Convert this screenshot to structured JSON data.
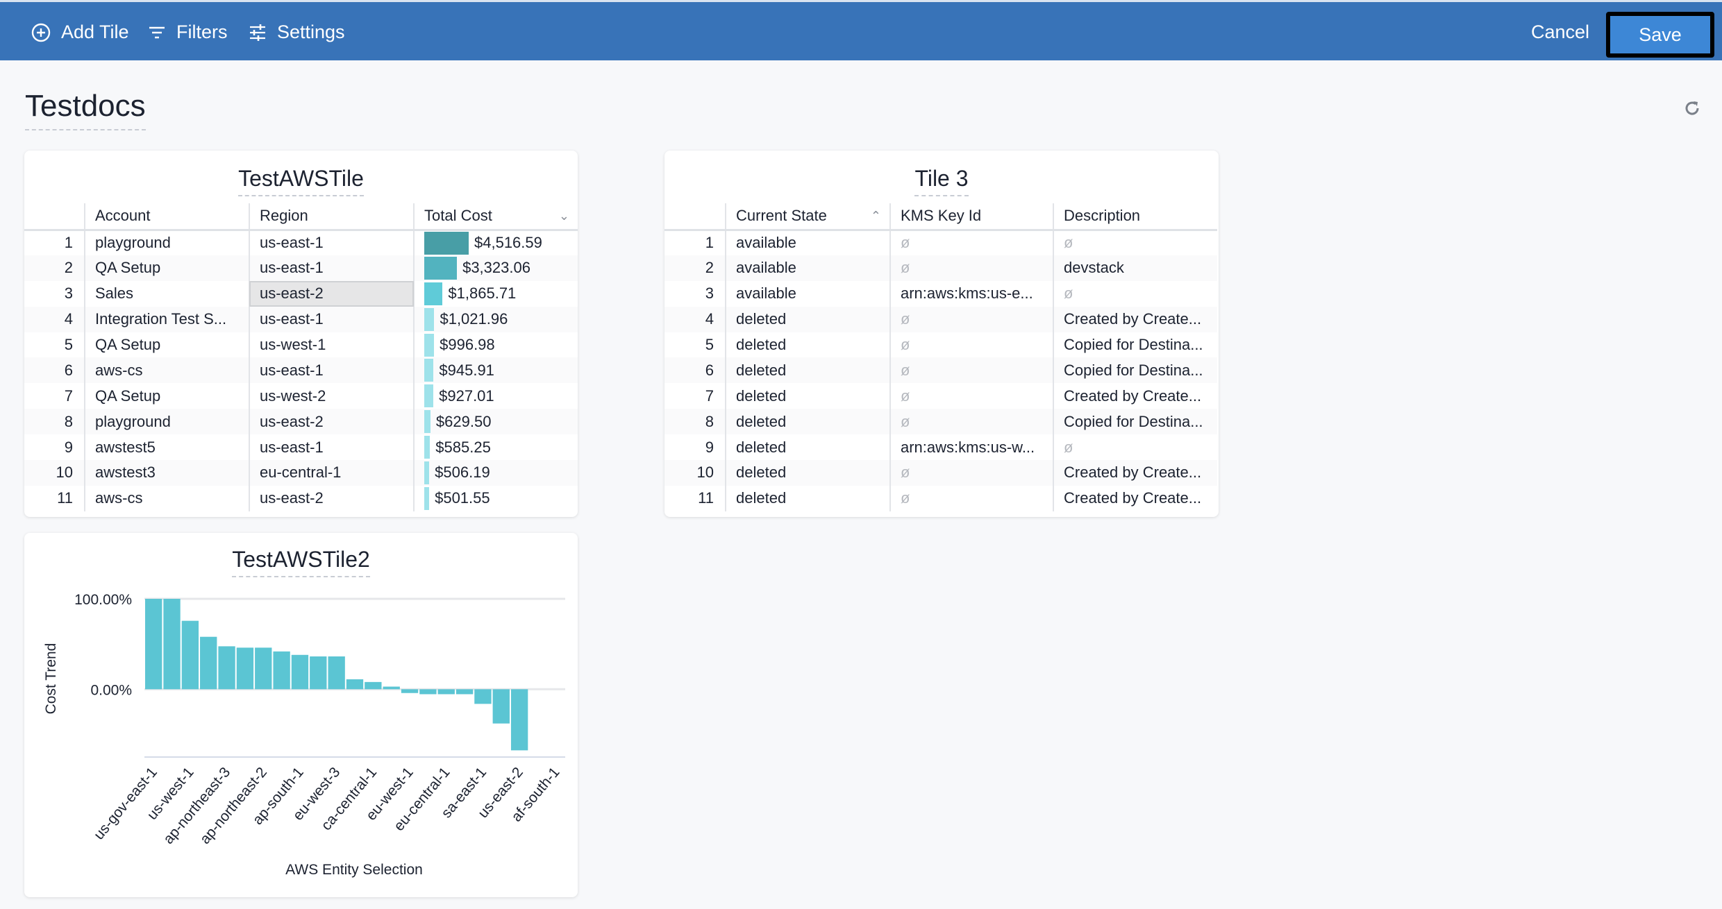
{
  "toolbar": {
    "add_tile": "Add Tile",
    "filters": "Filters",
    "settings": "Settings",
    "cancel": "Cancel",
    "save": "Save"
  },
  "page": {
    "title": "Testdocs"
  },
  "tile1": {
    "title": "TestAWSTile",
    "columns": [
      "",
      "Account",
      "Region",
      "Total Cost"
    ],
    "sort_column": "Total Cost",
    "sort_dir": "desc",
    "rows": [
      [
        "1",
        "playground",
        "us-east-1",
        "$4,516.59",
        4516.59
      ],
      [
        "2",
        "QA Setup",
        "us-east-1",
        "$3,323.06",
        3323.06
      ],
      [
        "3",
        "Sales",
        "us-east-2",
        "$1,865.71",
        1865.71
      ],
      [
        "4",
        "Integration Test S...",
        "us-east-1",
        "$1,021.96",
        1021.96
      ],
      [
        "5",
        "QA Setup",
        "us-west-1",
        "$996.98",
        996.98
      ],
      [
        "6",
        "aws-cs",
        "us-east-1",
        "$945.91",
        945.91
      ],
      [
        "7",
        "QA Setup",
        "us-west-2",
        "$927.01",
        927.01
      ],
      [
        "8",
        "playground",
        "us-east-2",
        "$629.50",
        629.5
      ],
      [
        "9",
        "awstest5",
        "us-east-1",
        "$585.25",
        585.25
      ],
      [
        "10",
        "awstest3",
        "eu-central-1",
        "$506.19",
        506.19
      ],
      [
        "11",
        "aws-cs",
        "us-east-2",
        "$501.55",
        501.55
      ]
    ]
  },
  "tile3": {
    "title": "Tile 3",
    "columns": [
      "",
      "Current State",
      "KMS Key Id",
      "Description"
    ],
    "sort_column": "Current State",
    "sort_dir": "asc",
    "null_symbol": "ø",
    "rows": [
      [
        "1",
        "available",
        "ø",
        "ø"
      ],
      [
        "2",
        "available",
        "ø",
        "devstack"
      ],
      [
        "3",
        "available",
        "arn:aws:kms:us-e...",
        "ø"
      ],
      [
        "4",
        "deleted",
        "ø",
        "Created by Create..."
      ],
      [
        "5",
        "deleted",
        "ø",
        "Copied for Destina..."
      ],
      [
        "6",
        "deleted",
        "ø",
        "Copied for Destina..."
      ],
      [
        "7",
        "deleted",
        "ø",
        "Created by Create..."
      ],
      [
        "8",
        "deleted",
        "ø",
        "Copied for Destina..."
      ],
      [
        "9",
        "deleted",
        "arn:aws:kms:us-w...",
        "ø"
      ],
      [
        "10",
        "deleted",
        "ø",
        "Created by Create..."
      ],
      [
        "11",
        "deleted",
        "ø",
        "Created by Create..."
      ]
    ]
  },
  "colors": {
    "header": "#3873b8",
    "save": "#3d87d6",
    "bar": "#5bc5d3"
  },
  "chart_data": {
    "type": "bar",
    "title": "TestAWSTile2",
    "xlabel": "AWS Entity Selection",
    "ylabel": "Cost Trend",
    "categories": [
      "us-gov-east-1",
      "",
      "us-west-1",
      "",
      "ap-northeast-3",
      "",
      "ap-northeast-2",
      "",
      "ap-south-1",
      "",
      "eu-west-3",
      "",
      "ca-central-1",
      "",
      "eu-west-1",
      "",
      "eu-central-1",
      "",
      "sa-east-1",
      "",
      "us-east-2",
      "",
      "af-south-1"
    ],
    "values": [
      100,
      100,
      75.7,
      58,
      47.5,
      46,
      46,
      41.8,
      38,
      36.3,
      36.3,
      11,
      8,
      2.9,
      -4.2,
      -5.5,
      -5.5,
      -5.5,
      -16.2,
      -37.9,
      -67.6,
      0,
      0
    ],
    "yticks": [
      "100.00%",
      "0.00%"
    ],
    "ytick_values": [
      100,
      0
    ],
    "ylim": [
      -75,
      100
    ],
    "grid": true
  }
}
